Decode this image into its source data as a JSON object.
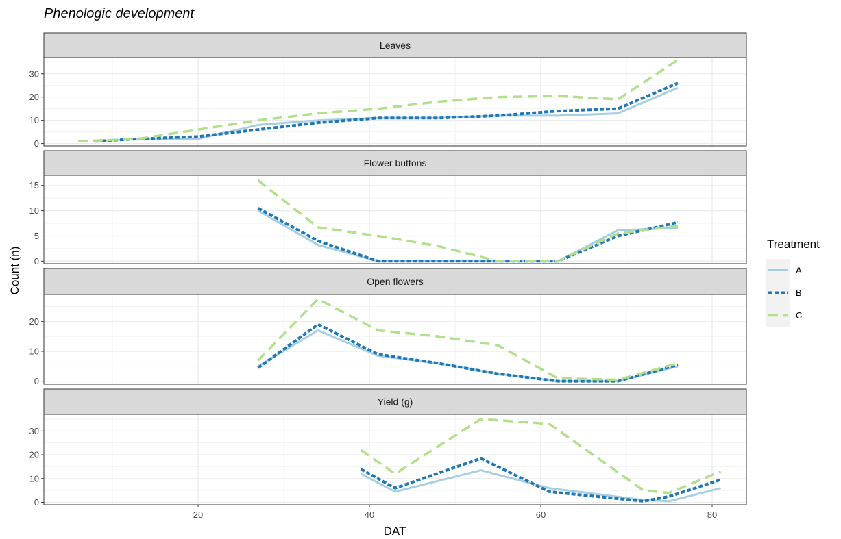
{
  "chart_data": {
    "type": "line",
    "title": "Phenologic development",
    "xlabel": "DAT",
    "ylabel": "Count (n)",
    "xlim": [
      2,
      84
    ],
    "x_ticks": [
      20,
      40,
      60,
      80
    ],
    "grid": true,
    "legend": {
      "title": "Treatment",
      "placement": "right",
      "entries": [
        {
          "name": "A",
          "color": "#A6CEE3",
          "dash": "solid"
        },
        {
          "name": "B",
          "color": "#1F78B4",
          "dash": "dotted"
        },
        {
          "name": "C",
          "color": "#B2DF8A",
          "dash": "dashed"
        }
      ]
    },
    "panels": [
      {
        "label": "Leaves",
        "ylim": [
          -1,
          37
        ],
        "y_ticks": [
          0,
          10,
          20,
          30
        ],
        "series": [
          {
            "name": "A",
            "x": [
              8,
              13,
              20,
              27,
              34,
              41,
              48,
              55,
              62,
              69,
              76
            ],
            "y": [
              1,
              2,
              2,
              8,
              10,
              11,
              11,
              12,
              12,
              13,
              24
            ]
          },
          {
            "name": "B",
            "x": [
              8,
              13,
              20,
              27,
              34,
              41,
              48,
              55,
              62,
              69,
              76
            ],
            "y": [
              1,
              2,
              3,
              6,
              9,
              11,
              11,
              12,
              14,
              15,
              26
            ]
          },
          {
            "name": "C",
            "x": [
              6,
              13,
              20,
              27,
              34,
              41,
              48,
              55,
              62,
              69,
              76
            ],
            "y": [
              1,
              2,
              6,
              10,
              13,
              15,
              18,
              20,
              20.5,
              19,
              36
            ]
          }
        ]
      },
      {
        "label": "Flower buttons",
        "ylim": [
          -0.5,
          17
        ],
        "y_ticks": [
          0,
          5,
          10,
          15
        ],
        "series": [
          {
            "name": "A",
            "x": [
              27,
              34,
              41,
              48,
              55,
              62,
              69,
              76
            ],
            "y": [
              10,
              3.2,
              0,
              0,
              0,
              0,
              6.1,
              6.6
            ]
          },
          {
            "name": "B",
            "x": [
              27,
              34,
              41,
              48,
              55,
              62,
              69,
              76
            ],
            "y": [
              10.5,
              4,
              0,
              0,
              0,
              0,
              5,
              7.7
            ]
          },
          {
            "name": "C",
            "x": [
              27,
              34,
              41,
              48,
              55,
              62,
              69,
              76
            ],
            "y": [
              16,
              6.7,
              5,
              3,
              0,
              0,
              5.5,
              7
            ]
          }
        ]
      },
      {
        "label": "Open flowers",
        "ylim": [
          -1,
          29
        ],
        "y_ticks": [
          0,
          10,
          20
        ],
        "series": [
          {
            "name": "A",
            "x": [
              27,
              34,
              41,
              48,
              55,
              62,
              69,
              76
            ],
            "y": [
              5,
              17,
              8.5,
              6,
              2.5,
              0,
              0,
              5
            ]
          },
          {
            "name": "B",
            "x": [
              27,
              34,
              41,
              48,
              55,
              62,
              69,
              76
            ],
            "y": [
              4.5,
              19,
              9,
              6,
              2.5,
              0,
              0,
              5.5
            ]
          },
          {
            "name": "C",
            "x": [
              27,
              34,
              41,
              48,
              55,
              62,
              69,
              76
            ],
            "y": [
              7,
              27.5,
              17,
              15,
              12,
              1,
              0.5,
              6
            ]
          }
        ]
      },
      {
        "label": "Yield (g)",
        "ylim": [
          -1,
          37
        ],
        "y_ticks": [
          0,
          10,
          20,
          30
        ],
        "series": [
          {
            "name": "A",
            "x": [
              39,
              43,
              53,
              61,
              72,
              75,
              81
            ],
            "y": [
              12,
              4.5,
              13.5,
              6,
              1,
              0.5,
              6
            ]
          },
          {
            "name": "B",
            "x": [
              39,
              43,
              53,
              61,
              72,
              75,
              81
            ],
            "y": [
              14,
              6,
              18.5,
              4.5,
              0.5,
              2.5,
              9.5
            ]
          },
          {
            "name": "C",
            "x": [
              39,
              43,
              53,
              61,
              72,
              75,
              81
            ],
            "y": [
              22,
              12,
              35,
              33,
              5,
              4,
              13
            ]
          }
        ]
      }
    ]
  }
}
